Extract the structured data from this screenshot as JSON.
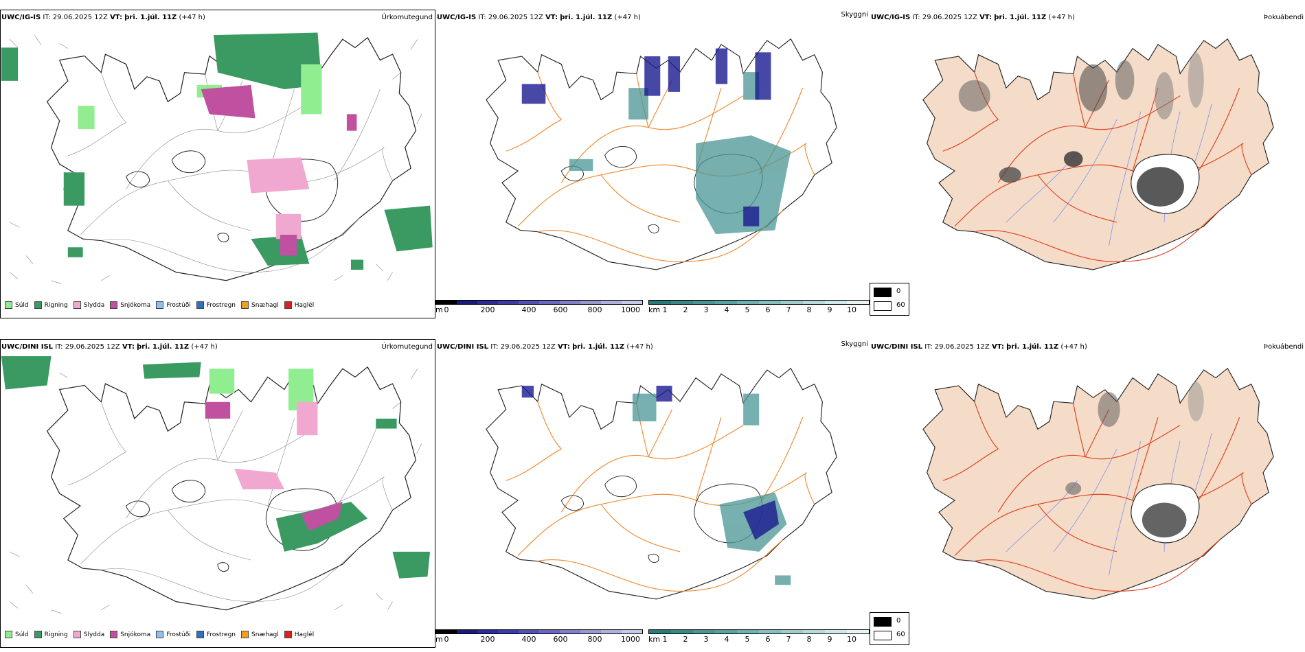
{
  "rows": [
    {
      "model": "UWC/IG-IS",
      "it_label": "IT:",
      "it_value": "29.06.2025 12Z",
      "vt_label": "VT:",
      "vt_value": "þri. 1.júl. 11Z",
      "lead": "(+47 h)"
    },
    {
      "model": "UWC/DINI ISL",
      "it_label": "IT:",
      "it_value": "29.06.2025 12Z",
      "vt_label": "VT:",
      "vt_value": "þri. 1.júl. 11Z",
      "lead": "(+47 h)"
    }
  ],
  "panels": {
    "precip": {
      "title": "Úrkomutegund"
    },
    "cloud": {
      "title": "Skyggni"
    },
    "fog": {
      "title": "Þokuábendi"
    }
  },
  "precip_legend": [
    {
      "label": "Súld",
      "color": "#90ee90"
    },
    {
      "label": "Rigning",
      "color": "#3a9a62"
    },
    {
      "label": "Slydda",
      "color": "#f0a8d0"
    },
    {
      "label": "Snjókoma",
      "color": "#c050a0"
    },
    {
      "label": "Frostúði",
      "color": "#90c0f0"
    },
    {
      "label": "Frostregn",
      "color": "#3070c0"
    },
    {
      "label": "Snæhagl",
      "color": "#f0a020"
    },
    {
      "label": "Haglél",
      "color": "#e02020"
    }
  ],
  "ceiling_bar": {
    "unit": "m",
    "ticks": [
      "0",
      "200",
      "400",
      "600",
      "800",
      "1000"
    ],
    "colors": [
      "#000000",
      "#1a1a7a",
      "#2a2a9a",
      "#3a3aaa",
      "#5050b5",
      "#6868c0",
      "#8080c8",
      "#9898d0",
      "#b0b0dc",
      "#c8c8e8"
    ]
  },
  "visibility_bar": {
    "unit": "km",
    "ticks": [
      "1",
      "2",
      "3",
      "4",
      "5",
      "6",
      "7",
      "8",
      "9",
      "10"
    ],
    "colors": [
      "#2a7a7a",
      "#3a8888",
      "#4a9595",
      "#5aa2a2",
      "#70b0b0",
      "#88bebe",
      "#a0cccc",
      "#b8dada",
      "#d0e8e8",
      "#e8f4f4"
    ]
  },
  "fog_legend": {
    "high": "0",
    "low": "60"
  },
  "colors": {
    "rain": "#3a9a62",
    "drizzle": "#90ee90",
    "sleet": "#f0a8d0",
    "snow": "#c050a0",
    "roads": "#f08a30",
    "land_tan": "#f5dcc8",
    "roads_red": "#e04020",
    "rivers": "#8090f0",
    "low_cloud": "#1a1a90",
    "vis_teal": "#4a9595"
  }
}
